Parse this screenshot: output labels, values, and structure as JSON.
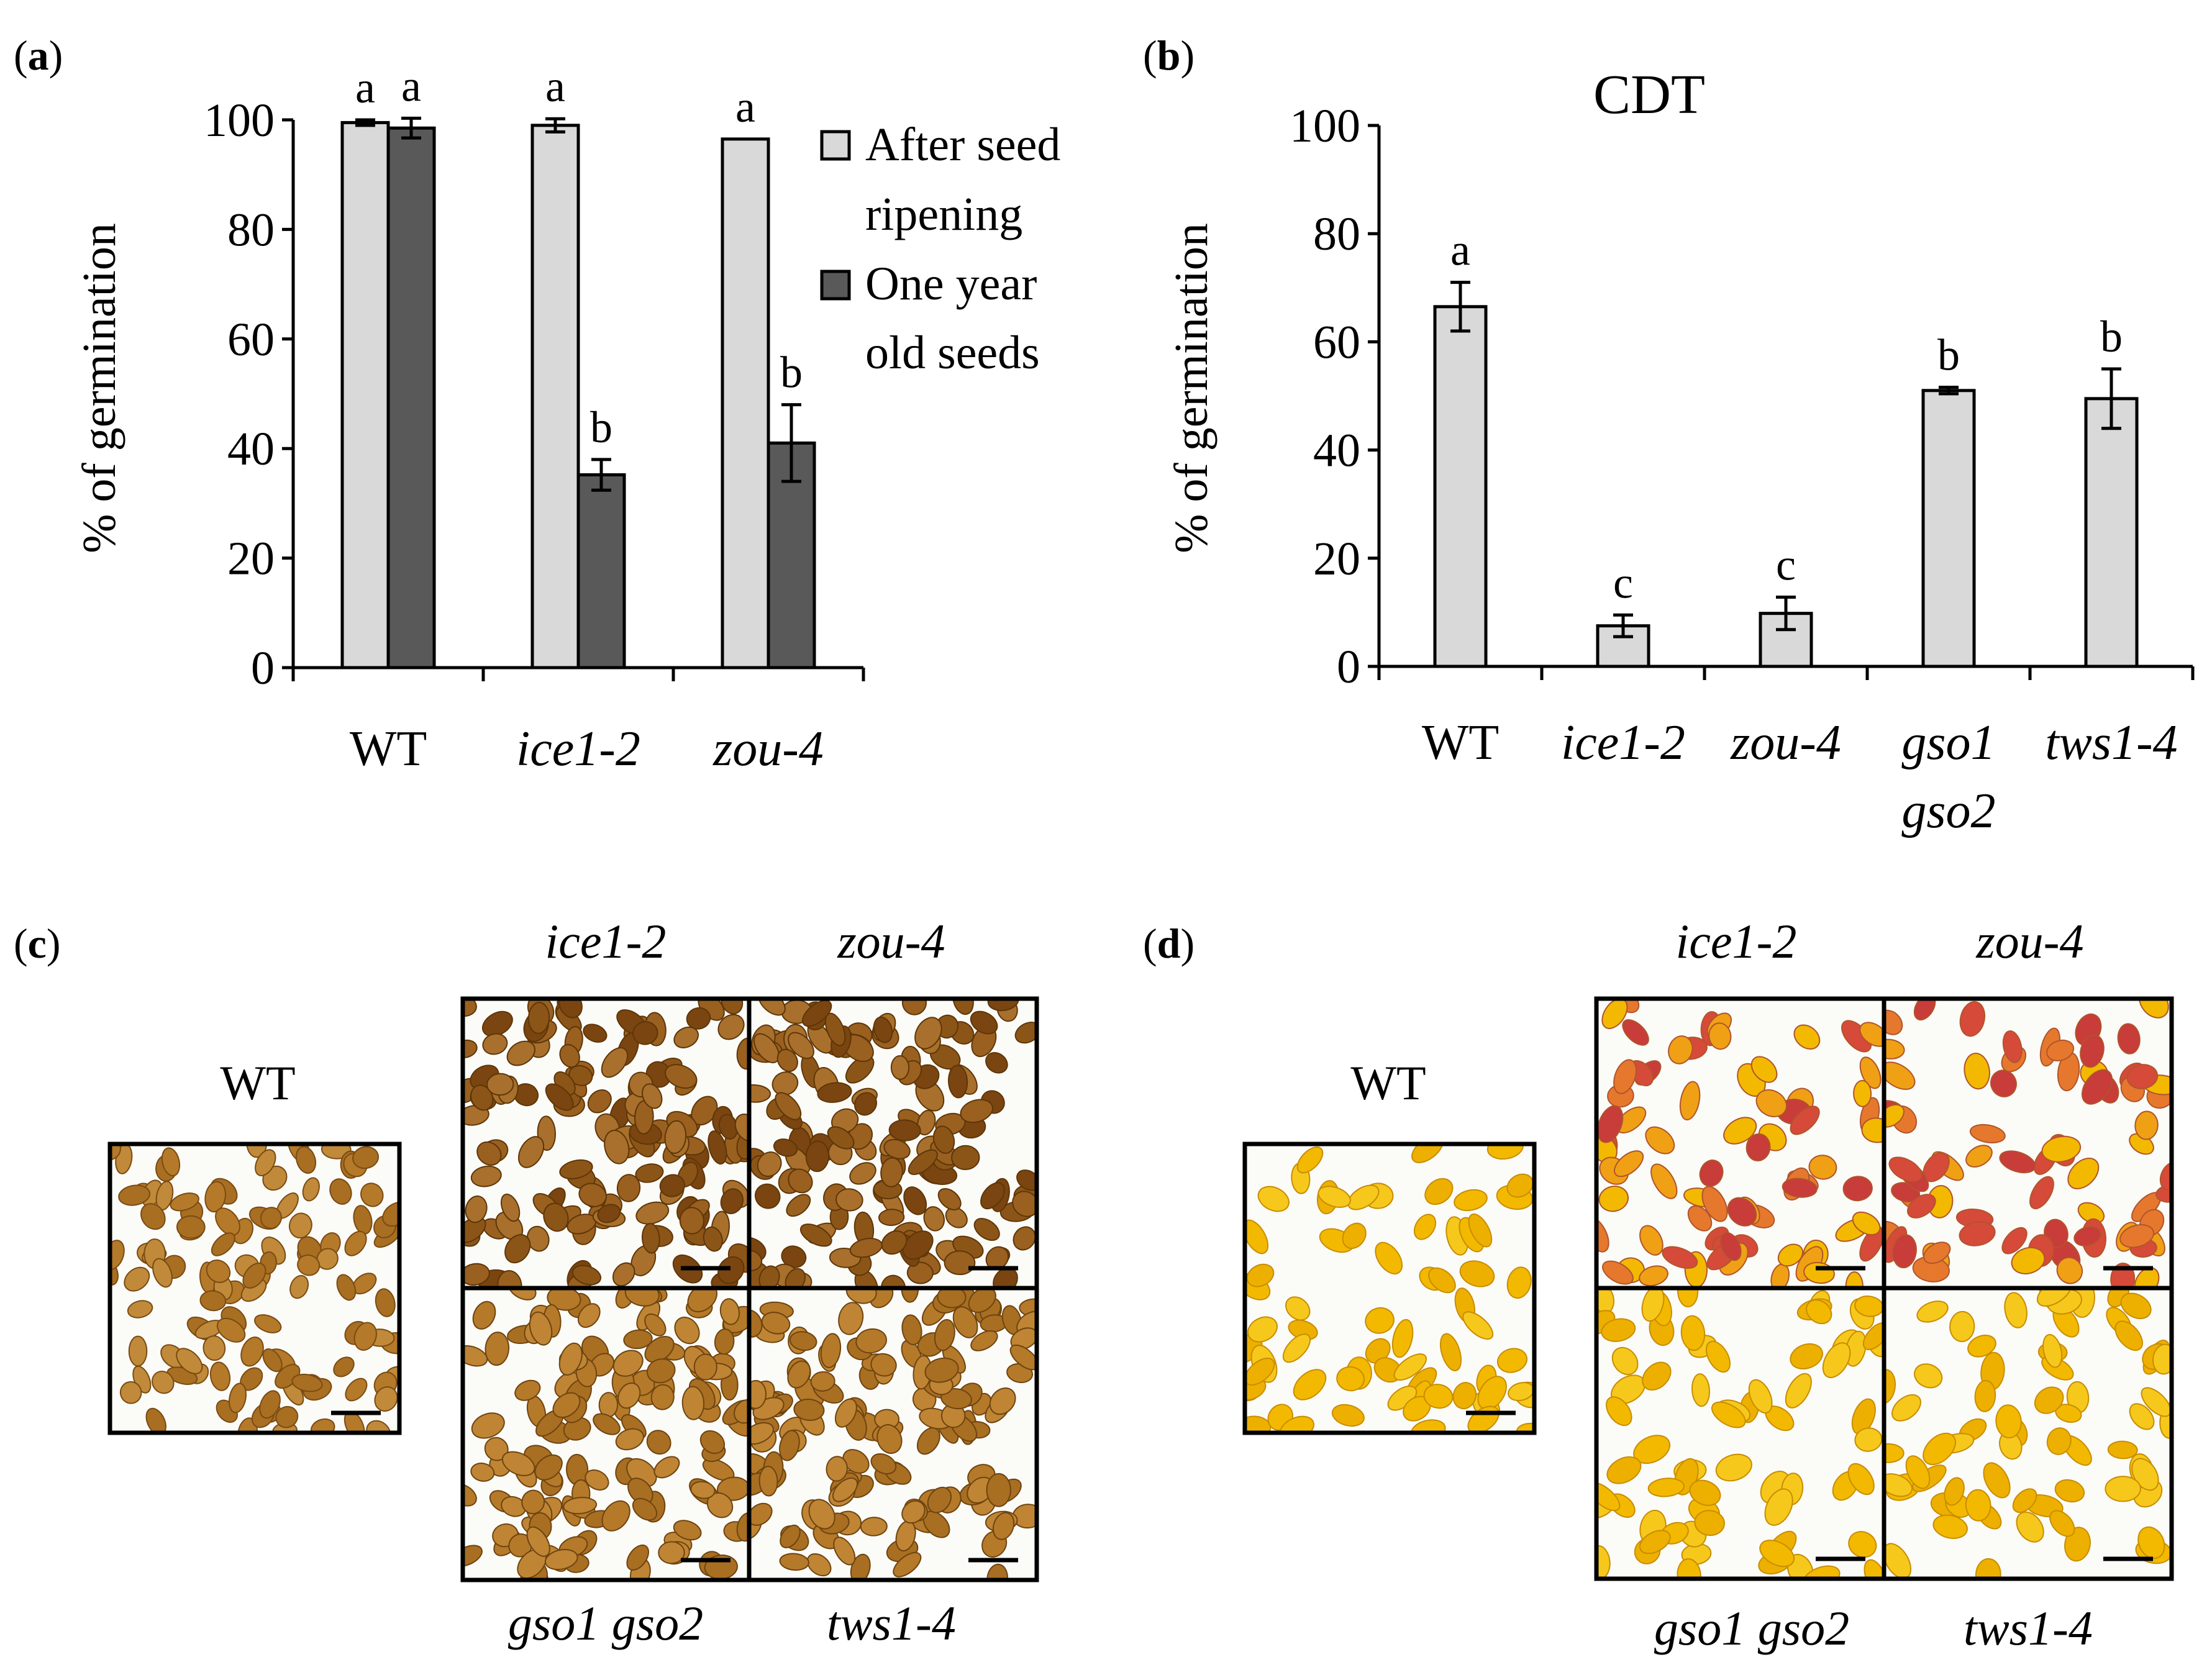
{
  "panels": {
    "a": {
      "label_open": "(",
      "label_letter": "a",
      "label_close": ")"
    },
    "b": {
      "label_open": "(",
      "label_letter": "b",
      "label_close": ")"
    },
    "c": {
      "label_open": "(",
      "label_letter": "c",
      "label_close": ")"
    },
    "d": {
      "label_open": "(",
      "label_letter": "d",
      "label_close": ")"
    }
  },
  "chart_data": [
    {
      "id": "a",
      "type": "bar",
      "title": "",
      "ylabel": "% of germination",
      "xlabel": "",
      "ylim": [
        0,
        100
      ],
      "yticks": [
        "0",
        "20",
        "40",
        "60",
        "80",
        "100"
      ],
      "categories": [
        "WT",
        "ice1-2",
        "zou-4"
      ],
      "series": [
        {
          "name": "After seed ripening",
          "name_line1": "After seed",
          "name_line2": "ripening",
          "color": "#d9d9d9",
          "values": [
            99.5,
            99,
            96.5
          ],
          "errors": [
            0.5,
            1.2,
            0
          ],
          "letters": [
            "a",
            "a",
            "a"
          ]
        },
        {
          "name": "One year old seeds",
          "name_line1": "One year",
          "name_line2": "old seeds",
          "color": "#595959",
          "values": [
            98.5,
            35.2,
            41
          ],
          "errors": [
            1.8,
            2.8,
            7
          ],
          "letters": [
            "a",
            "b",
            "b"
          ]
        }
      ],
      "legend_position": "top-right"
    },
    {
      "id": "b",
      "type": "bar",
      "title": "CDT",
      "ylabel": "% of germination",
      "xlabel": "",
      "ylim": [
        0,
        100
      ],
      "yticks": [
        "0",
        "20",
        "40",
        "60",
        "80",
        "100"
      ],
      "categories": [
        "WT",
        "ice1-2",
        "zou-4",
        "gso1 gso2",
        "tws1-4"
      ],
      "category_lines": [
        [
          "WT"
        ],
        [
          "ice1-2"
        ],
        [
          "zou-4"
        ],
        [
          "gso1",
          "gso2"
        ],
        [
          "tws1-4"
        ]
      ],
      "series": [
        {
          "name": "CDT",
          "color": "#d9d9d9",
          "values": [
            66.5,
            7.5,
            9.8,
            51,
            49.5
          ],
          "errors": [
            4.5,
            2,
            3,
            0.6,
            5.5
          ],
          "letters": [
            "a",
            "c",
            "c",
            "b",
            "b"
          ]
        }
      ]
    }
  ],
  "images": {
    "c": {
      "wt_label": "WT",
      "top_left_label": "ice1-2",
      "top_right_label": "zou-4",
      "bottom_left_label": "gso1 gso2",
      "bottom_right_label": "tws1-4",
      "seed_color": "#b5792a",
      "dark_seed_color": "#8c5518"
    },
    "d": {
      "wt_label": "WT",
      "top_left_label": "ice1-2",
      "top_right_label": "zou-4",
      "bottom_left_label": "gso1 gso2",
      "bottom_right_label": "tws1-4",
      "seed_color": "#f3b900",
      "red_seed_color": "#d64a3a"
    }
  }
}
